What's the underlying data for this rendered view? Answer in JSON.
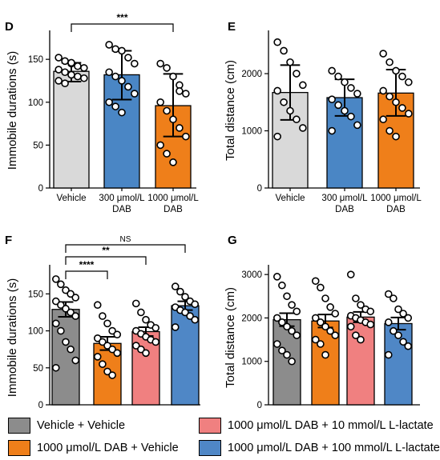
{
  "colors": {
    "vehicle": "#d9d9d9",
    "dab_300": "#4a86c5",
    "dab_1000": "#ef7f1a",
    "dab_lactate_10": "#f08080",
    "dab_lactate_100": "#4f87c6",
    "vehicle_vehicle": "#8c8c8c",
    "dab_vehicle": "#ef7f1a"
  },
  "legend": [
    {
      "label": "Vehicle + Vehicle",
      "color": "#8c8c8c"
    },
    {
      "label": "1000 μmol/L DAB + 10 mmol/L L-lactate",
      "color": "#f08080"
    },
    {
      "label": "1000 μmol/L DAB + Vehicle",
      "color": "#ef7f1a"
    },
    {
      "label": "1000 μmol/L DAB + 100 mmol/L L-lactate",
      "color": "#4f87c6"
    }
  ],
  "chart_data": [
    {
      "panel": "D",
      "type": "bar",
      "ylabel": "Immobile durations (s)",
      "ylim": [
        0,
        180
      ],
      "yticks": [
        0,
        50,
        100,
        150
      ],
      "categories": [
        "Vehicle",
        "300 μmol/L\nDAB",
        "1000 μmol/L\nDAB"
      ],
      "values": [
        136,
        132,
        96
      ],
      "error_lower": [
        124,
        103,
        60
      ],
      "error_upper": [
        146,
        160,
        133
      ],
      "colors": [
        "#d9d9d9",
        "#4a86c5",
        "#ef7f1a"
      ],
      "points": [
        [
          152,
          148,
          145,
          142,
          140,
          138,
          135,
          132,
          130,
          128,
          125,
          122,
          146
        ],
        [
          167,
          162,
          160,
          152,
          145,
          135,
          130,
          125,
          118,
          110,
          100,
          95,
          88
        ],
        [
          145,
          140,
          130,
          120,
          110,
          100,
          90,
          80,
          70,
          60,
          50,
          40,
          30,
          113
        ]
      ],
      "significance": [
        {
          "from": 0,
          "to": 2,
          "label": "***"
        }
      ]
    },
    {
      "panel": "E",
      "type": "bar",
      "ylabel": "Total distance (cm)",
      "ylim": [
        0,
        2700
      ],
      "yticks": [
        0,
        1000,
        2000
      ],
      "categories": [
        "Vehicle",
        "300 μmol/L\nDAB",
        "1000 μmol/L\nDAB"
      ],
      "values": [
        1670,
        1580,
        1660
      ],
      "error_lower": [
        1190,
        1260,
        1260
      ],
      "error_upper": [
        2150,
        1900,
        2070
      ],
      "colors": [
        "#d9d9d9",
        "#4a86c5",
        "#ef7f1a"
      ],
      "points": [
        [
          2550,
          2400,
          2200,
          2000,
          1800,
          1700,
          1500,
          1350,
          1200,
          1050,
          900
        ],
        [
          2050,
          1950,
          1850,
          1750,
          1650,
          1550,
          1450,
          1350,
          1250,
          1100,
          1000
        ],
        [
          2350,
          2200,
          2050,
          1950,
          1850,
          1700,
          1600,
          1500,
          1400,
          1300,
          1200,
          1000,
          900
        ]
      ]
    },
    {
      "panel": "F",
      "type": "bar",
      "ylabel": "Immobile durations (s)",
      "ylim": [
        0,
        185
      ],
      "yticks": [
        0,
        50,
        100,
        150
      ],
      "categories": [
        "Vehicle + Vehicle",
        "1000 μmol/L DAB + Vehicle",
        "1000 μmol/L DAB + 10 mmol/L L-lactate",
        "1000 μmol/L DAB + 100 mmol/L L-lactate"
      ],
      "values": [
        129,
        83,
        99,
        134
      ],
      "error_lower": [
        119,
        74,
        93,
        128
      ],
      "error_upper": [
        139,
        92,
        105,
        140
      ],
      "colors": [
        "#8c8c8c",
        "#ef7f1a",
        "#f08080",
        "#4f87c6"
      ],
      "points": [
        [
          170,
          163,
          155,
          150,
          145,
          140,
          135,
          130,
          125,
          120,
          110,
          100,
          85,
          75,
          60,
          50
        ],
        [
          135,
          120,
          110,
          100,
          95,
          90,
          85,
          80,
          75,
          70,
          65,
          55,
          45,
          40
        ],
        [
          137,
          125,
          115,
          108,
          104,
          100,
          96,
          92,
          88,
          85,
          80,
          75,
          70
        ],
        [
          160,
          153,
          146,
          140,
          136,
          132,
          128,
          125,
          120,
          115,
          105
        ]
      ],
      "significance": [
        {
          "from": 0,
          "to": 3,
          "label": "NS"
        },
        {
          "from": 0,
          "to": 2,
          "label": "**"
        },
        {
          "from": 0,
          "to": 1,
          "label": "****"
        }
      ]
    },
    {
      "panel": "G",
      "type": "bar",
      "ylabel": "Total distance (cm)",
      "ylim": [
        0,
        3150
      ],
      "yticks": [
        0,
        1000,
        2000,
        3000
      ],
      "categories": [
        "Vehicle + Vehicle",
        "1000 μmol/L DAB + Vehicle",
        "1000 μmol/L DAB + 10 mmol/L L-lactate",
        "1000 μmol/L DAB + 100 mmol/L L-lactate"
      ],
      "values": [
        1960,
        1930,
        2020,
        1870
      ],
      "error_lower": [
        1810,
        1780,
        1900,
        1730
      ],
      "error_upper": [
        2110,
        2080,
        2140,
        2010
      ],
      "colors": [
        "#8c8c8c",
        "#ef7f1a",
        "#f08080",
        "#4f87c6"
      ],
      "points": [
        [
          2950,
          2750,
          2500,
          2300,
          2150,
          2000,
          1900,
          1800,
          1700,
          1600,
          1400,
          1250,
          1150,
          1000
        ],
        [
          2850,
          2700,
          2450,
          2250,
          2100,
          2000,
          1900,
          1800,
          1700,
          1600,
          1500,
          1400,
          1150
        ],
        [
          3000,
          2450,
          2300,
          2200,
          2150,
          2050,
          2000,
          1950,
          1900,
          1850,
          1800,
          1600,
          1500
        ],
        [
          2550,
          2450,
          2200,
          2100,
          2000,
          1900,
          1700,
          1600,
          1450,
          1350,
          1150
        ]
      ]
    }
  ]
}
